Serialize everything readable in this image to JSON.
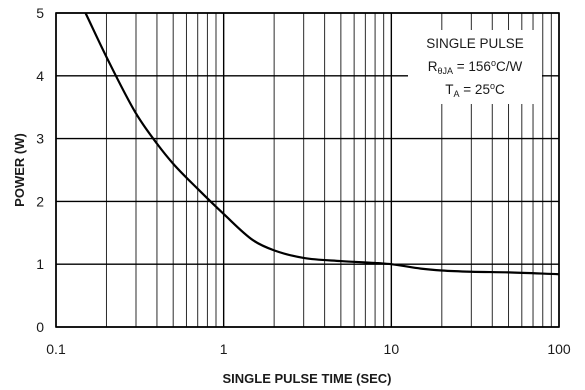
{
  "chart_data": {
    "type": "line",
    "xlabel": "SINGLE PULSE TIME (SEC)",
    "ylabel": "POWER (W)",
    "xscale": "log",
    "xlim": [
      0.1,
      100
    ],
    "ylim": [
      0,
      5
    ],
    "xticks": [
      "0.1",
      "1",
      "10",
      "100"
    ],
    "yticks": [
      "0",
      "1",
      "2",
      "3",
      "4",
      "5"
    ],
    "grid": true,
    "annotation": {
      "line1": "SINGLE PULSE",
      "line2": {
        "pre": "R",
        "sub": "θJA",
        "post": " = 156",
        "sup": "o",
        "tail": "C/W"
      },
      "line3": {
        "pre": "T",
        "sub": "A",
        "post": " = 25",
        "sup": "o",
        "tail": "C"
      }
    },
    "series": [
      {
        "x": [
          0.15,
          0.2,
          0.3,
          0.4,
          0.5,
          0.7,
          1,
          1.5,
          2,
          3,
          5,
          8,
          10,
          15,
          20,
          30,
          50,
          100
        ],
        "y": [
          5.0,
          4.3,
          3.4,
          2.92,
          2.6,
          2.2,
          1.8,
          1.38,
          1.22,
          1.1,
          1.05,
          1.02,
          1.0,
          0.93,
          0.9,
          0.88,
          0.87,
          0.84
        ]
      }
    ]
  }
}
